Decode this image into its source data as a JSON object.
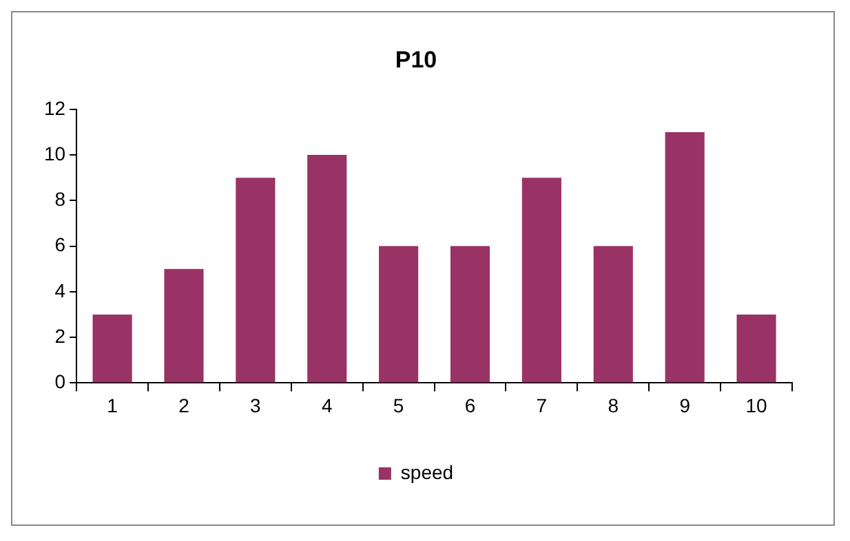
{
  "chart_data": {
    "type": "bar",
    "title": "P10",
    "categories": [
      "1",
      "2",
      "3",
      "4",
      "5",
      "6",
      "7",
      "8",
      "9",
      "10"
    ],
    "series": [
      {
        "name": "speed",
        "color": "#993366",
        "values": [
          3,
          5,
          9,
          10,
          6,
          6,
          9,
          6,
          11,
          3
        ]
      }
    ],
    "ylim": [
      0,
      12
    ],
    "yticks": [
      0,
      2,
      4,
      6,
      8,
      10,
      12
    ],
    "grid": false,
    "legend": "bottom"
  }
}
